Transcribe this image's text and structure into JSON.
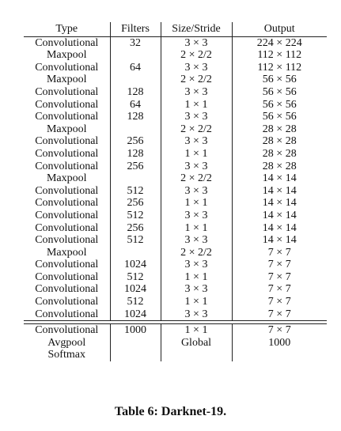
{
  "table": {
    "headers": {
      "type": "Type",
      "filters": "Filters",
      "size": "Size/Stride",
      "output": "Output"
    },
    "rows": [
      {
        "type": "Convolutional",
        "filters": "32",
        "size": "3 × 3",
        "output": "224 × 224"
      },
      {
        "type": "Maxpool",
        "filters": "",
        "size": "2 × 2/2",
        "output": "112 × 112"
      },
      {
        "type": "Convolutional",
        "filters": "64",
        "size": "3 × 3",
        "output": "112 × 112"
      },
      {
        "type": "Maxpool",
        "filters": "",
        "size": "2 × 2/2",
        "output": "56 × 56"
      },
      {
        "type": "Convolutional",
        "filters": "128",
        "size": "3 × 3",
        "output": "56 × 56"
      },
      {
        "type": "Convolutional",
        "filters": "64",
        "size": "1 × 1",
        "output": "56 × 56"
      },
      {
        "type": "Convolutional",
        "filters": "128",
        "size": "3 × 3",
        "output": "56 × 56"
      },
      {
        "type": "Maxpool",
        "filters": "",
        "size": "2 × 2/2",
        "output": "28 × 28"
      },
      {
        "type": "Convolutional",
        "filters": "256",
        "size": "3 × 3",
        "output": "28 × 28"
      },
      {
        "type": "Convolutional",
        "filters": "128",
        "size": "1 × 1",
        "output": "28 × 28"
      },
      {
        "type": "Convolutional",
        "filters": "256",
        "size": "3 × 3",
        "output": "28 × 28"
      },
      {
        "type": "Maxpool",
        "filters": "",
        "size": "2 × 2/2",
        "output": "14 × 14"
      },
      {
        "type": "Convolutional",
        "filters": "512",
        "size": "3 × 3",
        "output": "14 × 14"
      },
      {
        "type": "Convolutional",
        "filters": "256",
        "size": "1 × 1",
        "output": "14 × 14"
      },
      {
        "type": "Convolutional",
        "filters": "512",
        "size": "3 × 3",
        "output": "14 × 14"
      },
      {
        "type": "Convolutional",
        "filters": "256",
        "size": "1 × 1",
        "output": "14 × 14"
      },
      {
        "type": "Convolutional",
        "filters": "512",
        "size": "3 × 3",
        "output": "14 × 14"
      },
      {
        "type": "Maxpool",
        "filters": "",
        "size": "2 × 2/2",
        "output": "7 × 7"
      },
      {
        "type": "Convolutional",
        "filters": "1024",
        "size": "3 × 3",
        "output": "7 × 7"
      },
      {
        "type": "Convolutional",
        "filters": "512",
        "size": "1 × 1",
        "output": "7 × 7"
      },
      {
        "type": "Convolutional",
        "filters": "1024",
        "size": "3 × 3",
        "output": "7 × 7"
      },
      {
        "type": "Convolutional",
        "filters": "512",
        "size": "1 × 1",
        "output": "7 × 7"
      },
      {
        "type": "Convolutional",
        "filters": "1024",
        "size": "3 × 3",
        "output": "7 × 7"
      }
    ],
    "tail_rows": [
      {
        "type": "Convolutional",
        "filters": "1000",
        "size": "1 × 1",
        "output": "7 × 7"
      },
      {
        "type": "Avgpool",
        "filters": "",
        "size": "Global",
        "output": "1000"
      },
      {
        "type": "Softmax",
        "filters": "",
        "size": "",
        "output": ""
      }
    ]
  },
  "caption": "Table 6: Darknet-19."
}
